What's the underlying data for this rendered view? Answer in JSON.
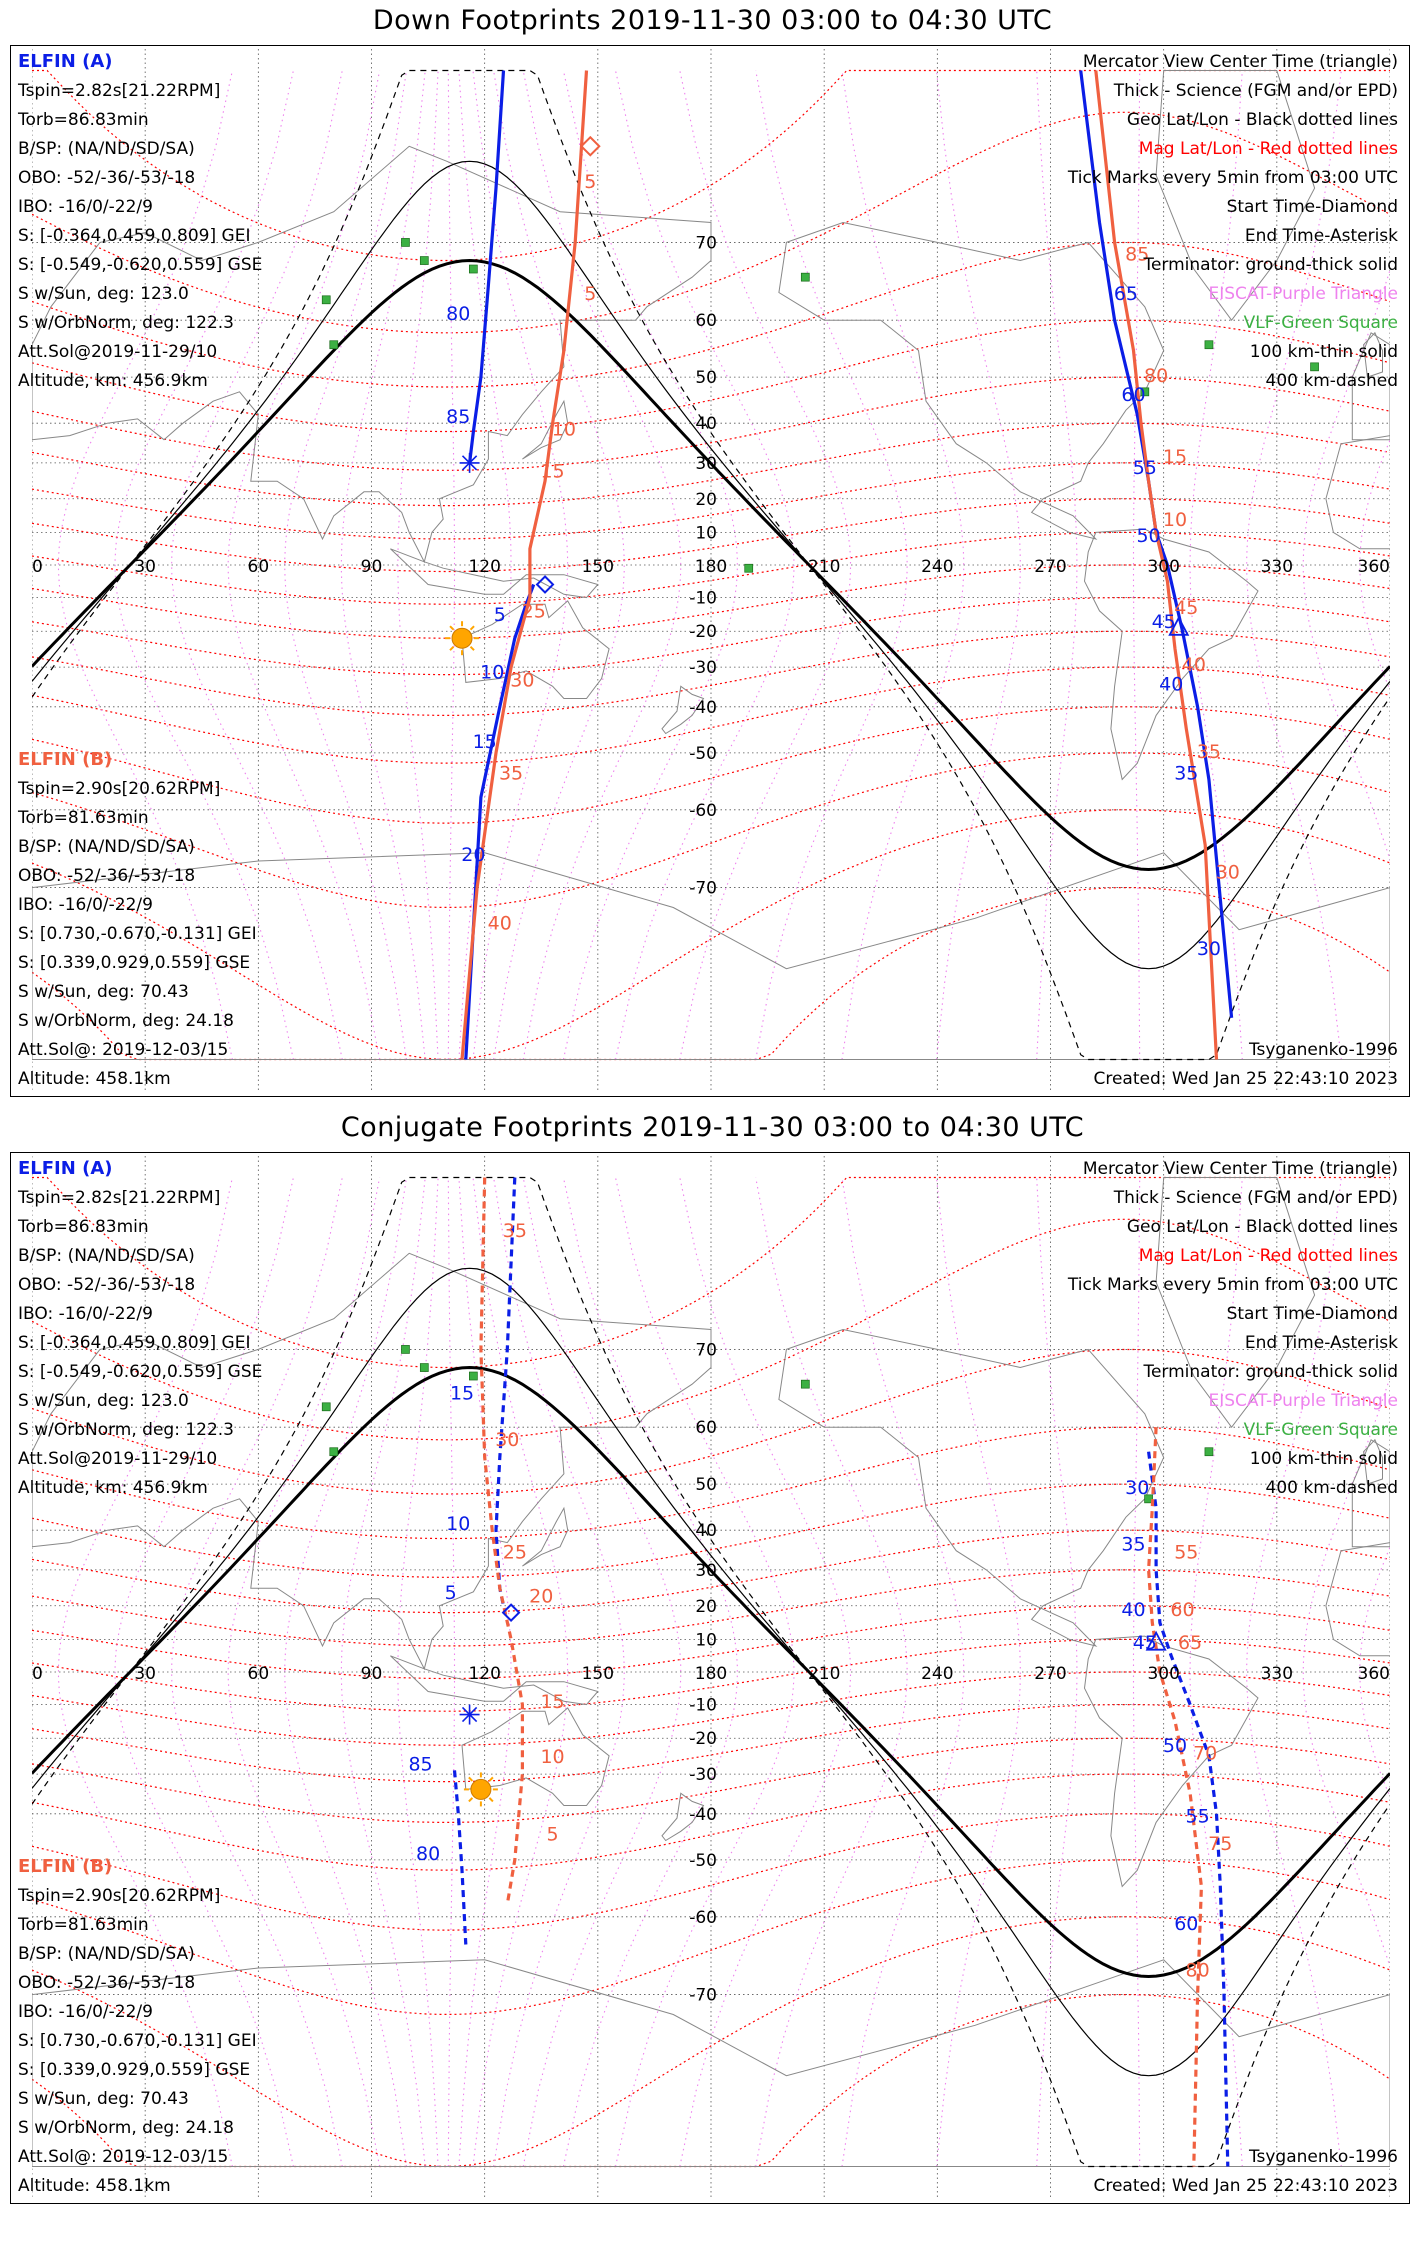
{
  "panels": [
    {
      "title": "Down Footprints 2019-11-30 03:00 to 04:30 UTC",
      "left_info_a": [
        "ELFIN (A)",
        "Tspin=2.82s[21.22RPM]",
        "Torb=86.83min",
        "B/SP: (NA/ND/SD/SA)",
        "OBO: -52/-36/-53/-18",
        "IBO: -16/0/-22/9",
        "S: [-0.364,0.459,0.809] GEI",
        "S: [-0.549,-0.620,0.559] GSE",
        "S w/Sun, deg: 123.0",
        "S w/OrbNorm, deg: 122.3",
        "Att.Sol@2019-11-29/10",
        "Altitude, km: 456.9km"
      ],
      "left_info_b": [
        "ELFIN (B)",
        "Tspin=2.90s[20.62RPM]",
        "Torb=81.63min",
        "B/SP: (NA/ND/SD/SA)",
        "OBO: -52/-36/-53/-18",
        "IBO: -16/0/-22/9",
        "S: [0.730,-0.670,-0.131] GEI",
        "S: [0.339,0.929,0.559] GSE",
        "S w/Sun, deg: 70.43",
        "S w/OrbNorm, deg: 24.18",
        "Att.Sol@: 2019-12-03/15",
        "Altitude: 458.1km"
      ],
      "legend": [
        "Mercator View Center Time (triangle)",
        "Thick - Science (FGM and/or EPD)",
        "Geo Lat/Lon - Black dotted lines",
        "Mag Lat/Lon - Red dotted lines",
        "Tick Marks every 5min from 03:00 UTC",
        "Start Time-Diamond",
        "End Time-Asterisk",
        "Terminator: ground-thick solid",
        "EISCAT-Purple Triangle",
        "VLF-Green Square",
        "100 km-thin solid",
        "400 km-dashed"
      ],
      "model": "Tsyganenko-1996",
      "created": "Created: Wed Jan 25 22:43:10 2023",
      "tick_labels_a": [
        {
          "text": "80",
          "lon": 113,
          "lat": 60
        },
        {
          "text": "85",
          "lon": 113,
          "lat": 40
        },
        {
          "text": "5",
          "lon": 124,
          "lat": -17
        },
        {
          "text": "10",
          "lon": 122,
          "lat": -33
        },
        {
          "text": "15",
          "lon": 120,
          "lat": -49
        },
        {
          "text": "20",
          "lon": 117,
          "lat": -67
        },
        {
          "text": "65",
          "lon": 290,
          "lat": 63
        },
        {
          "text": "60",
          "lon": 292,
          "lat": 45
        },
        {
          "text": "55",
          "lon": 295,
          "lat": 27
        },
        {
          "text": "50",
          "lon": 296,
          "lat": 7
        },
        {
          "text": "45",
          "lon": 300,
          "lat": -19
        },
        {
          "text": "40",
          "lon": 302,
          "lat": -36
        },
        {
          "text": "35",
          "lon": 306,
          "lat": -55
        },
        {
          "text": "30",
          "lon": 312,
          "lat": -76
        }
      ],
      "tick_labels_b": [
        {
          "text": "5",
          "lon": 148,
          "lat": 75
        },
        {
          "text": "5",
          "lon": 148,
          "lat": 63
        },
        {
          "text": "10",
          "lon": 141,
          "lat": 37
        },
        {
          "text": "15",
          "lon": 138,
          "lat": 26
        },
        {
          "text": "25",
          "lon": 133,
          "lat": -16
        },
        {
          "text": "30",
          "lon": 130,
          "lat": -35
        },
        {
          "text": "35",
          "lon": 127,
          "lat": -55
        },
        {
          "text": "40",
          "lon": 124,
          "lat": -74
        },
        {
          "text": "85",
          "lon": 293,
          "lat": 68
        },
        {
          "text": "80",
          "lon": 298,
          "lat": 49
        },
        {
          "text": "15",
          "lon": 303,
          "lat": 30
        },
        {
          "text": "10",
          "lon": 303,
          "lat": 12
        },
        {
          "text": "45",
          "lon": 306,
          "lat": -15
        },
        {
          "text": "40",
          "lon": 308,
          "lat": -31
        },
        {
          "text": "35",
          "lon": 312,
          "lat": -51
        },
        {
          "text": "30",
          "lon": 317,
          "lat": -69
        }
      ]
    },
    {
      "title": "Conjugate Footprints 2019-11-30 03:00 to 04:30 UTC",
      "left_info_a": [
        "ELFIN (A)",
        "Tspin=2.82s[21.22RPM]",
        "Torb=86.83min",
        "B/SP: (NA/ND/SD/SA)",
        "OBO: -52/-36/-53/-18",
        "IBO: -16/0/-22/9",
        "S: [-0.364,0.459,0.809] GEI",
        "S: [-0.549,-0.620,0.559] GSE",
        "S w/Sun, deg: 123.0",
        "S w/OrbNorm, deg: 122.3",
        "Att.Sol@2019-11-29/10",
        "Altitude, km: 456.9km"
      ],
      "left_info_b": [
        "ELFIN (B)",
        "Tspin=2.90s[20.62RPM]",
        "Torb=81.63min",
        "B/SP: (NA/ND/SD/SA)",
        "OBO: -52/-36/-53/-18",
        "IBO: -16/0/-22/9",
        "S: [0.730,-0.670,-0.131] GEI",
        "S: [0.339,0.929,0.559] GSE",
        "S w/Sun, deg: 70.43",
        "S w/OrbNorm, deg: 24.18",
        "Att.Sol@: 2019-12-03/15",
        "Altitude: 458.1km"
      ],
      "legend": [
        "Mercator View Center Time (triangle)",
        "Thick - Science (FGM and/or EPD)",
        "Geo Lat/Lon - Black dotted lines",
        "Mag Lat/Lon - Red dotted lines",
        "Tick Marks every 5min from 03:00 UTC",
        "Start Time-Diamond",
        "End Time-Asterisk",
        "Terminator: ground-thick solid",
        "EISCAT-Purple Triangle",
        "VLF-Green Square",
        "100 km-thin solid",
        "400 km-dashed"
      ],
      "model": "Tsyganenko-1996",
      "created": "Created: Wed Jan 25 22:43:10 2023",
      "tick_labels_a": [
        {
          "text": "15",
          "lon": 114,
          "lat": 64
        },
        {
          "text": "10",
          "lon": 113,
          "lat": 40
        },
        {
          "text": "5",
          "lon": 111,
          "lat": 22
        },
        {
          "text": "85",
          "lon": 103,
          "lat": -29
        },
        {
          "text": "80",
          "lon": 105,
          "lat": -50
        },
        {
          "text": "30",
          "lon": 293,
          "lat": 48
        },
        {
          "text": "35",
          "lon": 292,
          "lat": 35
        },
        {
          "text": "40",
          "lon": 292,
          "lat": 17
        },
        {
          "text": "45",
          "lon": 295,
          "lat": 7
        },
        {
          "text": "50",
          "lon": 303,
          "lat": -24
        },
        {
          "text": "55",
          "lon": 309,
          "lat": -42
        },
        {
          "text": "60",
          "lon": 306,
          "lat": -62
        }
      ],
      "tick_labels_b": [
        {
          "text": "35",
          "lon": 128,
          "lat": 79
        },
        {
          "text": "30",
          "lon": 126,
          "lat": 57
        },
        {
          "text": "25",
          "lon": 128,
          "lat": 33
        },
        {
          "text": "20",
          "lon": 135,
          "lat": 21
        },
        {
          "text": "15",
          "lon": 138,
          "lat": -11
        },
        {
          "text": "10",
          "lon": 138,
          "lat": -27
        },
        {
          "text": "5",
          "lon": 138,
          "lat": -46
        },
        {
          "text": "55",
          "lon": 306,
          "lat": 33
        },
        {
          "text": "60",
          "lon": 305,
          "lat": 17
        },
        {
          "text": "65",
          "lon": 307,
          "lat": 7
        },
        {
          "text": "70",
          "lon": 311,
          "lat": -26
        },
        {
          "text": "75",
          "lon": 315,
          "lat": -48
        },
        {
          "text": "80",
          "lon": 309,
          "lat": -68
        }
      ]
    }
  ],
  "lon_labels": [
    "0",
    "30",
    "60",
    "90",
    "120",
    "150",
    "180",
    "210",
    "240",
    "270",
    "300",
    "330",
    "360"
  ],
  "lat_labels": [
    "70",
    "60",
    "50",
    "40",
    "30",
    "20",
    "10",
    "-10",
    "-20",
    "-30",
    "-40",
    "-50",
    "-60",
    "-70"
  ],
  "colors": {
    "elfin_a": "#0b1ee6",
    "elfin_b": "#f06040",
    "geo_grid": "#555555",
    "mag_grid": "#ff0000",
    "mag_lon": "#ee82ee",
    "vlf": "#3cb043",
    "eiscat": "#ee82ee",
    "sun": "#ffa500",
    "terminator": "#000000",
    "coast": "#888888"
  },
  "map_extent": {
    "lon": [
      0,
      360
    ],
    "lat": [
      -82,
      82
    ]
  }
}
